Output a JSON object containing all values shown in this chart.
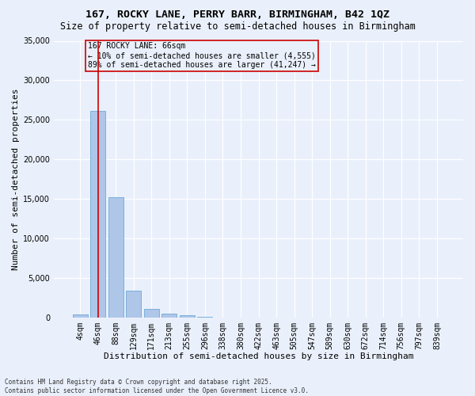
{
  "title": "167, ROCKY LANE, PERRY BARR, BIRMINGHAM, B42 1QZ",
  "subtitle": "Size of property relative to semi-detached houses in Birmingham",
  "xlabel": "Distribution of semi-detached houses by size in Birmingham",
  "ylabel": "Number of semi-detached properties",
  "categories": [
    "4sqm",
    "46sqm",
    "88sqm",
    "129sqm",
    "171sqm",
    "213sqm",
    "255sqm",
    "296sqm",
    "338sqm",
    "380sqm",
    "422sqm",
    "463sqm",
    "505sqm",
    "547sqm",
    "589sqm",
    "630sqm",
    "672sqm",
    "714sqm",
    "756sqm",
    "797sqm",
    "839sqm"
  ],
  "values": [
    400,
    26100,
    15200,
    3350,
    1050,
    450,
    250,
    100,
    0,
    0,
    0,
    0,
    0,
    0,
    0,
    0,
    0,
    0,
    0,
    0,
    0
  ],
  "bar_color": "#aec6e8",
  "bar_edge_color": "#5a9fd4",
  "background_color": "#eaf0fb",
  "grid_color": "#ffffff",
  "vline_color": "#cc0000",
  "annotation_text": "167 ROCKY LANE: 66sqm\n← 10% of semi-detached houses are smaller (4,555)\n89% of semi-detached houses are larger (41,247) →",
  "annotation_box_color": "#cc0000",
  "ylim": [
    0,
    35000
  ],
  "yticks": [
    0,
    5000,
    10000,
    15000,
    20000,
    25000,
    30000,
    35000
  ],
  "footer": "Contains HM Land Registry data © Crown copyright and database right 2025.\nContains public sector information licensed under the Open Government Licence v3.0.",
  "title_fontsize": 9.5,
  "subtitle_fontsize": 8.5,
  "label_fontsize": 8,
  "tick_fontsize": 7,
  "annotation_fontsize": 7,
  "footer_fontsize": 5.5
}
